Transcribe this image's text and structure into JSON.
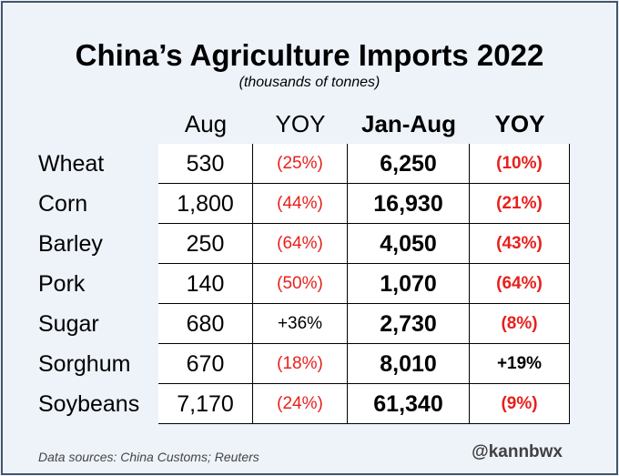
{
  "chart_data": {
    "type": "table",
    "title": "China’s Agriculture Imports 2022",
    "subtitle": "(thousands of tonnes)",
    "columns": [
      "Aug",
      "YOY",
      "Jan-Aug",
      "YOY"
    ],
    "rows": [
      {
        "label": "Wheat",
        "aug": "530",
        "aug_yoy": "(25%)",
        "ytd": "6,250",
        "ytd_yoy": "(10%)"
      },
      {
        "label": "Corn",
        "aug": "1,800",
        "aug_yoy": "(44%)",
        "ytd": "16,930",
        "ytd_yoy": "(21%)"
      },
      {
        "label": "Barley",
        "aug": "250",
        "aug_yoy": "(64%)",
        "ytd": "4,050",
        "ytd_yoy": "(43%)"
      },
      {
        "label": "Pork",
        "aug": "140",
        "aug_yoy": "(50%)",
        "ytd": "1,070",
        "ytd_yoy": "(64%)"
      },
      {
        "label": "Sugar",
        "aug": "680",
        "aug_yoy": "+36%",
        "ytd": "2,730",
        "ytd_yoy": "(8%)"
      },
      {
        "label": "Sorghum",
        "aug": "670",
        "aug_yoy": "(18%)",
        "ytd": "8,010",
        "ytd_yoy": "+19%"
      },
      {
        "label": "Soybeans",
        "aug": "7,170",
        "aug_yoy": "(24%)",
        "ytd": "61,340",
        "ytd_yoy": "(9%)"
      }
    ],
    "values_numeric": {
      "aug": [
        530,
        1800,
        250,
        140,
        680,
        670,
        7170
      ],
      "aug_yoy_pct": [
        -25,
        -44,
        -64,
        -50,
        36,
        -18,
        -24
      ],
      "ytd": [
        6250,
        16930,
        4050,
        1070,
        2730,
        8010,
        61340
      ],
      "ytd_yoy_pct": [
        -10,
        -21,
        -43,
        -64,
        -8,
        19,
        -9
      ]
    }
  },
  "footer": {
    "source": "Data sources: China Customs; Reuters",
    "handle": "@kannbwx"
  },
  "colors": {
    "background": "#eef3fa",
    "negative": "#e8201c",
    "border": "#44546a"
  }
}
